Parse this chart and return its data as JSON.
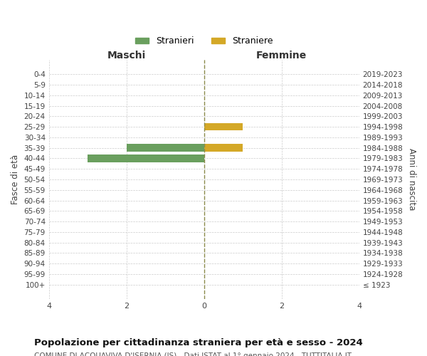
{
  "age_groups": [
    "100+",
    "95-99",
    "90-94",
    "85-89",
    "80-84",
    "75-79",
    "70-74",
    "65-69",
    "60-64",
    "55-59",
    "50-54",
    "45-49",
    "40-44",
    "35-39",
    "30-34",
    "25-29",
    "20-24",
    "15-19",
    "10-14",
    "5-9",
    "0-4"
  ],
  "birth_years": [
    "≤ 1923",
    "1924-1928",
    "1929-1933",
    "1934-1938",
    "1939-1943",
    "1944-1948",
    "1949-1953",
    "1954-1958",
    "1959-1963",
    "1964-1968",
    "1969-1973",
    "1974-1978",
    "1979-1983",
    "1984-1988",
    "1989-1993",
    "1994-1998",
    "1999-2003",
    "2004-2008",
    "2009-2013",
    "2014-2018",
    "2019-2023"
  ],
  "males": [
    0,
    0,
    0,
    0,
    0,
    0,
    0,
    0,
    0,
    0,
    0,
    0,
    3,
    2,
    0,
    0,
    0,
    0,
    0,
    0,
    0
  ],
  "females": [
    0,
    0,
    0,
    0,
    0,
    0,
    0,
    0,
    0,
    0,
    0,
    0,
    0,
    1,
    0,
    1,
    0,
    0,
    0,
    0,
    0
  ],
  "male_color": "#6a9f5e",
  "female_color": "#d4a827",
  "male_label": "Stranieri",
  "female_label": "Straniere",
  "title": "Popolazione per cittadinanza straniera per età e sesso - 2024",
  "subtitle": "COMUNE DI ACQUAVIVA D'ISERNIA (IS) - Dati ISTAT al 1° gennaio 2024 - TUTTITALIA.IT",
  "ylabel_left": "Fasce di età",
  "ylabel_right": "Anni di nascita",
  "xlabel_left": "Maschi",
  "xlabel_right": "Femmine",
  "xlim": 4,
  "background_color": "#ffffff",
  "grid_color": "#cccccc",
  "center_line_color": "#8b8b4b"
}
